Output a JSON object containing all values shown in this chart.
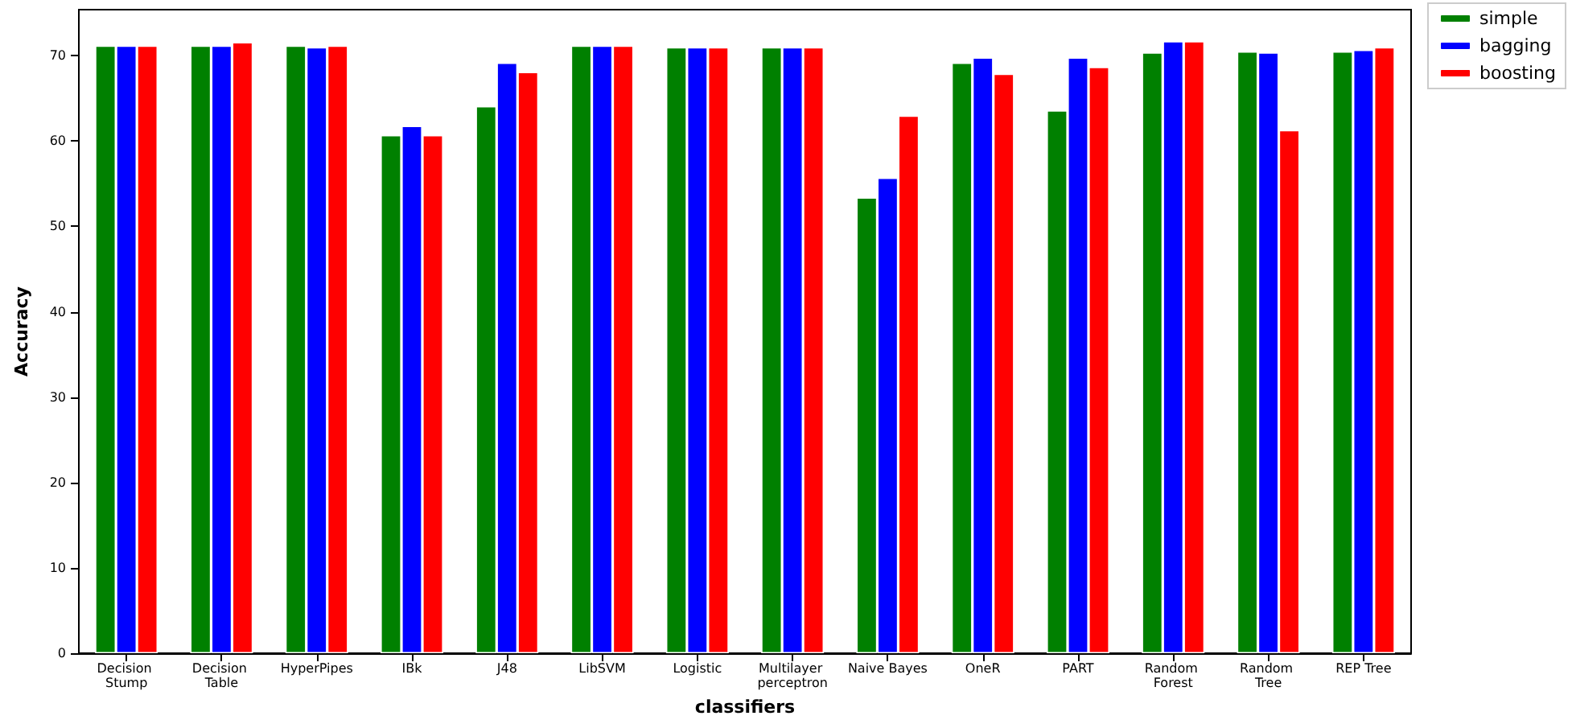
{
  "chart_data": {
    "type": "bar",
    "xlabel": "classifiers",
    "ylabel": "Accuracy",
    "categories": [
      "Decision Stump",
      "Decision Table",
      "HyperPipes",
      "IBk",
      "J48",
      "LibSVM",
      "Logistic",
      "Multilayer perceptron",
      "Naive Bayes",
      "OneR",
      "PART",
      "Random Forest",
      "Random Tree",
      "REP Tree"
    ],
    "series": [
      {
        "name": "simple",
        "color": "#008000",
        "values": [
          71.2,
          71.2,
          71.2,
          60.7,
          64.1,
          71.2,
          71.0,
          71.0,
          53.4,
          69.2,
          63.6,
          70.4,
          70.5,
          70.5
        ]
      },
      {
        "name": "bagging",
        "color": "#0000ff",
        "values": [
          71.2,
          71.2,
          71.0,
          61.8,
          69.2,
          71.2,
          71.0,
          71.0,
          55.7,
          69.8,
          69.8,
          71.7,
          70.4,
          70.7
        ]
      },
      {
        "name": "boosting",
        "color": "#ff0000",
        "values": [
          71.2,
          71.6,
          71.2,
          60.7,
          68.1,
          71.2,
          71.0,
          71.0,
          63.0,
          67.9,
          68.7,
          71.7,
          61.3,
          71.0
        ]
      }
    ],
    "ylim": [
      0,
      75.4
    ],
    "yticks": [
      0,
      10,
      20,
      30,
      40,
      50,
      60,
      70
    ],
    "grid": false,
    "legend": "top right"
  }
}
